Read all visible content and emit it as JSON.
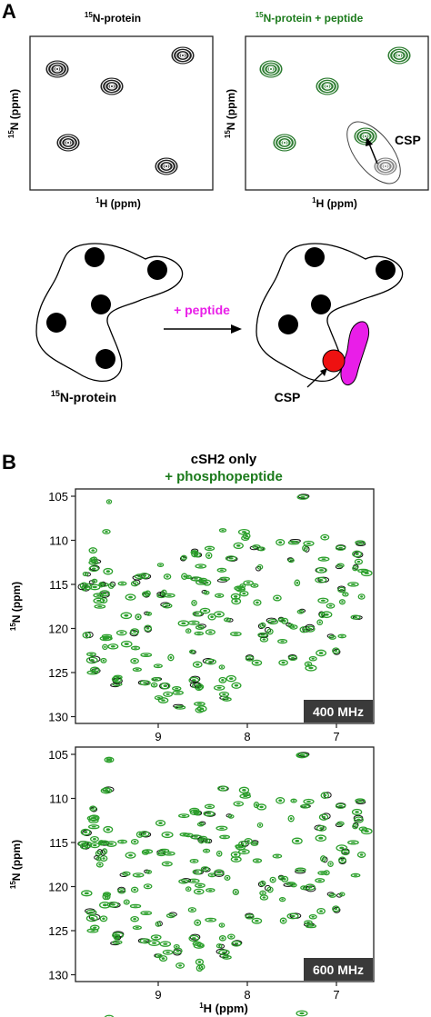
{
  "panel_a": {
    "label": "A",
    "left_title": "15N-protein",
    "left_title_sup": "15",
    "left_title_rest": "N-protein",
    "right_title_sup": "15",
    "right_title_rest": "N-protein + peptide",
    "y_label_sup": "15",
    "y_label_rest": "N (ppm)",
    "x_label_sup": "1",
    "x_label_rest": "H (ppm)",
    "csp_label": "CSP",
    "arrow_label": "+ peptide",
    "protein_label_sup": "15",
    "protein_label_rest": "N-protein",
    "csp_label_2": "CSP",
    "colors": {
      "apo": "#222222",
      "bound": "#2e7d32",
      "peptide": "#e91ee8",
      "csp_site": "#ee1111"
    }
  },
  "panel_b": {
    "label": "B",
    "title_line1": "cSH2 only",
    "title_line2": "+ phosphopeptide",
    "title_line2_color": "#1b7a1b",
    "y_label_sup": "15",
    "y_label_rest": "N (ppm)",
    "x_label_sup": "1",
    "x_label_rest": "H (ppm)",
    "y_ticks": [
      "105",
      "110",
      "115",
      "120",
      "125",
      "130"
    ],
    "x_ticks": [
      "9",
      "8",
      "7"
    ],
    "badge_top": "400 MHz",
    "badge_bottom": "600 MHz"
  }
}
